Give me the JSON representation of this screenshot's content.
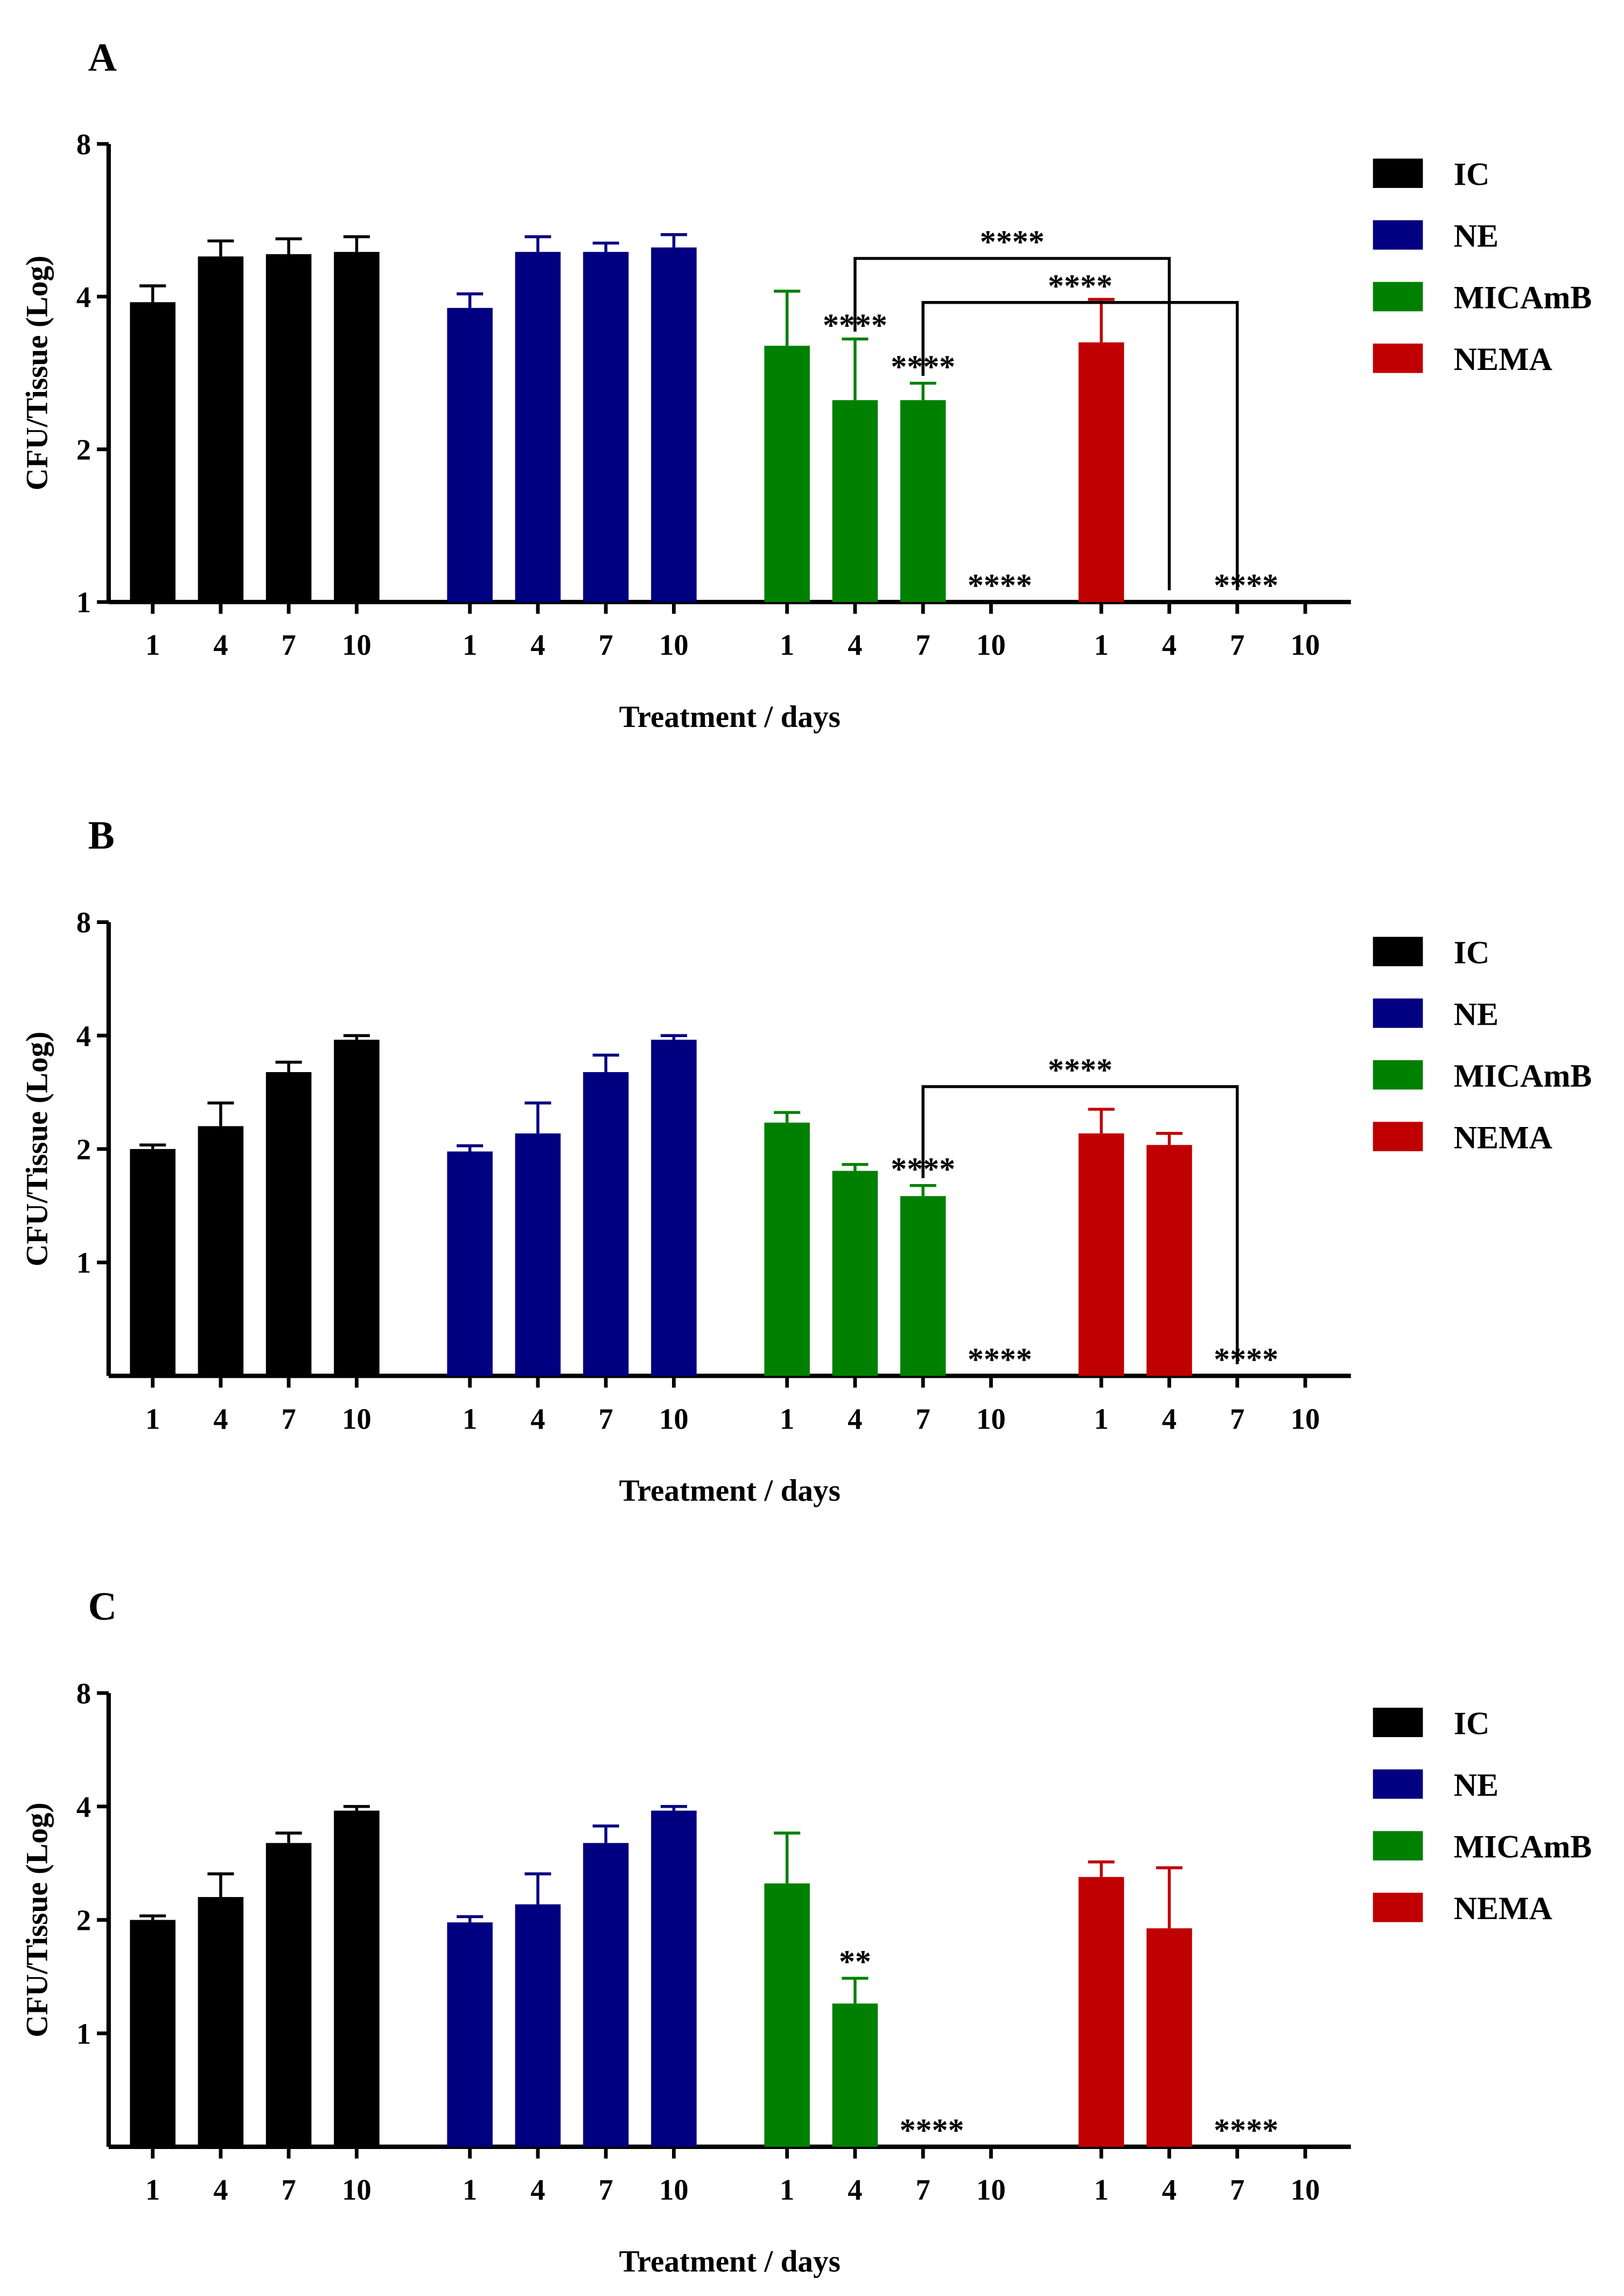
{
  "colors": {
    "IC": "#000000",
    "NE": "#000080",
    "MICAmB": "#008000",
    "NEMA": "#c00000",
    "axis": "#000000"
  },
  "chart_data": [
    {
      "panel_label": "A",
      "type": "bar",
      "ylabel": "CFU/Tissue (Log)",
      "xlabel": "Treatment / days",
      "ylim": [
        1,
        8
      ],
      "y_ticks": [
        "1",
        "2",
        "4",
        "8"
      ],
      "categories": [
        "1",
        "4",
        "7",
        "10"
      ],
      "legend": [
        "IC",
        "NE",
        "MICAmB",
        "NEMA"
      ],
      "series": [
        {
          "name": "IC",
          "values": [
            3.9,
            4.8,
            4.85,
            4.9
          ],
          "errors": [
            0.3,
            0.35,
            0.35,
            0.35
          ]
        },
        {
          "name": "NE",
          "values": [
            3.8,
            4.9,
            4.9,
            5.0
          ],
          "errors": [
            0.25,
            0.35,
            0.2,
            0.3
          ]
        },
        {
          "name": "MICAmB",
          "values": [
            3.2,
            2.5,
            2.5,
            null
          ],
          "errors": [
            0.9,
            0.8,
            0.2,
            null
          ]
        },
        {
          "name": "NEMA",
          "values": [
            3.25,
            null,
            null,
            null
          ],
          "errors": [
            0.7,
            null,
            null,
            null
          ]
        }
      ],
      "annotations": [
        {
          "series": 2,
          "index": 1,
          "text": "****"
        },
        {
          "series": 2,
          "index": 2,
          "text": "****"
        },
        {
          "series": 2,
          "index": 3,
          "text": "****"
        },
        {
          "series": 3,
          "index": 2,
          "text": "****"
        }
      ],
      "brackets": [
        {
          "from": [
            2,
            1
          ],
          "to": [
            3,
            1
          ],
          "text": "****"
        },
        {
          "from": [
            2,
            2
          ],
          "to": [
            3,
            2
          ],
          "text": "****"
        }
      ]
    },
    {
      "panel_label": "B",
      "type": "bar",
      "ylabel": "CFU/Tissue (Log)",
      "xlabel": "Treatment / days",
      "ylim": [
        0.5,
        8
      ],
      "y_ticks": [
        "1",
        "2",
        "4",
        "8"
      ],
      "categories": [
        "1",
        "4",
        "7",
        "10"
      ],
      "legend": [
        "IC",
        "NE",
        "MICAmB",
        "NEMA"
      ],
      "series": [
        {
          "name": "IC",
          "values": [
            2.0,
            2.3,
            3.2,
            3.9
          ],
          "errors": [
            0.05,
            0.35,
            0.2,
            0.1
          ]
        },
        {
          "name": "NE",
          "values": [
            1.97,
            2.2,
            3.2,
            3.9
          ],
          "errors": [
            0.07,
            0.45,
            0.35,
            0.1
          ]
        },
        {
          "name": "MICAmB",
          "values": [
            2.35,
            1.75,
            1.5,
            null
          ],
          "errors": [
            0.15,
            0.07,
            0.1,
            null
          ]
        },
        {
          "name": "NEMA",
          "values": [
            2.2,
            2.05,
            null,
            null
          ],
          "errors": [
            0.35,
            0.15,
            null,
            null
          ]
        }
      ],
      "annotations": [
        {
          "series": 2,
          "index": 2,
          "text": "****"
        },
        {
          "series": 2,
          "index": 3,
          "text": "****"
        },
        {
          "series": 3,
          "index": 2,
          "text": "****"
        }
      ],
      "brackets": [
        {
          "from": [
            2,
            2
          ],
          "to": [
            3,
            2
          ],
          "text": "****"
        }
      ]
    },
    {
      "panel_label": "C",
      "type": "bar",
      "ylabel": "CFU/Tissue (Log)",
      "xlabel": "Treatment / days",
      "ylim": [
        0.5,
        8
      ],
      "y_ticks": [
        "1",
        "2",
        "4",
        "8"
      ],
      "categories": [
        "1",
        "4",
        "7",
        "10"
      ],
      "legend": [
        "IC",
        "NE",
        "MICAmB",
        "NEMA"
      ],
      "series": [
        {
          "name": "IC",
          "values": [
            2.0,
            2.3,
            3.2,
            3.9
          ],
          "errors": [
            0.05,
            0.35,
            0.2,
            0.1
          ]
        },
        {
          "name": "NE",
          "values": [
            1.97,
            2.2,
            3.2,
            3.9
          ],
          "errors": [
            0.07,
            0.45,
            0.35,
            0.1
          ]
        },
        {
          "name": "MICAmB",
          "values": [
            2.5,
            1.2,
            null,
            null
          ],
          "errors": [
            0.9,
            0.2,
            null,
            null
          ]
        },
        {
          "name": "NEMA",
          "values": [
            2.6,
            1.9,
            null,
            null
          ],
          "errors": [
            0.25,
            0.85,
            null,
            null
          ]
        }
      ],
      "annotations": [
        {
          "series": 2,
          "index": 1,
          "text": "**"
        },
        {
          "series": 2,
          "index": 2,
          "text": "****"
        },
        {
          "series": 3,
          "index": 2,
          "text": "****"
        }
      ],
      "brackets": []
    }
  ]
}
